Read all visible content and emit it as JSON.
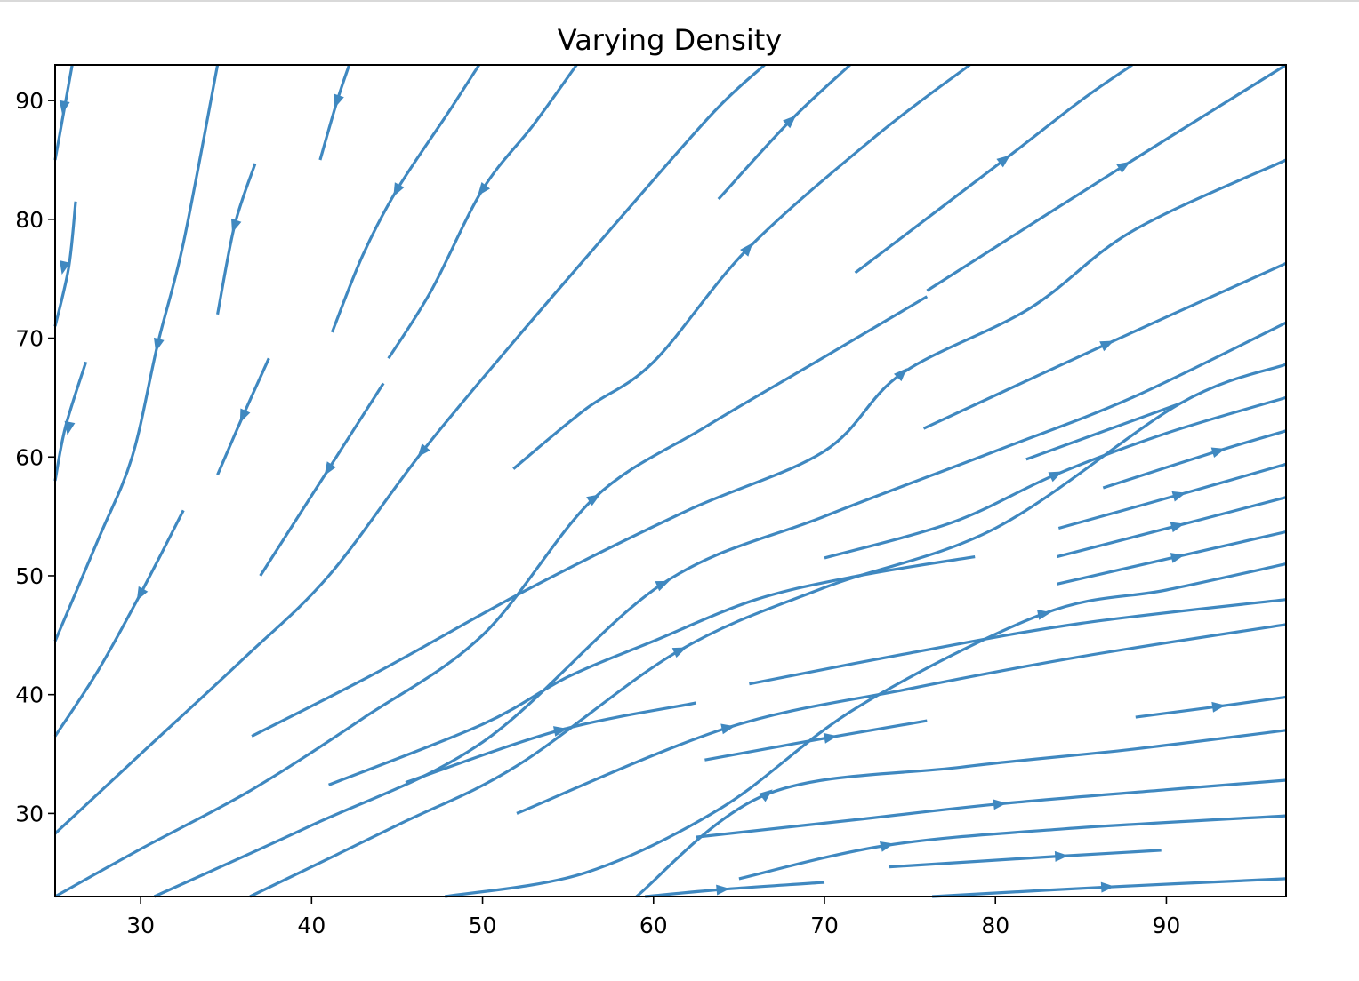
{
  "chart_data": {
    "type": "streamplot",
    "title": "Varying Density",
    "xlabel": "",
    "ylabel": "",
    "xlim": [
      25,
      97
    ],
    "ylim": [
      23,
      93
    ],
    "xticks": [
      30,
      40,
      50,
      60,
      70,
      80,
      90
    ],
    "yticks": [
      30,
      40,
      50,
      60,
      70,
      80,
      90
    ],
    "grid": false,
    "color": "#3f88c0",
    "streamlines": [
      {
        "points": [
          [
            25,
            85
          ],
          [
            26,
            93
          ]
        ],
        "arrows": [
          [
            25.5,
            89.5,
            "down"
          ]
        ]
      },
      {
        "points": [
          [
            25,
            71
          ],
          [
            25.8,
            76
          ],
          [
            26.2,
            81.5
          ]
        ],
        "arrows": [
          [
            25.5,
            76,
            "down"
          ]
        ]
      },
      {
        "points": [
          [
            25,
            58
          ],
          [
            25.6,
            62.5
          ],
          [
            26.8,
            68
          ]
        ],
        "arrows": [
          [
            25.8,
            62.5,
            "down"
          ]
        ]
      },
      {
        "points": [
          [
            25,
            44.5
          ],
          [
            27.5,
            53
          ],
          [
            29.5,
            60
          ],
          [
            31,
            69.5
          ],
          [
            32.5,
            78
          ],
          [
            34.5,
            93
          ]
        ],
        "arrows": [
          [
            31,
            69.5,
            "down"
          ]
        ]
      },
      {
        "points": [
          [
            25,
            36.5
          ],
          [
            27.5,
            42
          ],
          [
            30,
            48.5
          ],
          [
            32.5,
            55.5
          ]
        ],
        "arrows": [
          [
            30,
            48.5,
            "down"
          ]
        ]
      },
      {
        "points": [
          [
            34.5,
            72
          ],
          [
            35.5,
            79.5
          ],
          [
            36.7,
            84.7
          ]
        ],
        "arrows": [
          [
            35.5,
            79.5,
            "down"
          ]
        ]
      },
      {
        "points": [
          [
            34.5,
            58.5
          ],
          [
            36,
            63.5
          ],
          [
            37.5,
            68.3
          ]
        ],
        "arrows": [
          [
            36,
            63.5,
            "down"
          ]
        ]
      },
      {
        "points": [
          [
            40.5,
            85
          ],
          [
            41.5,
            90
          ],
          [
            42.2,
            93
          ]
        ],
        "arrows": [
          [
            41.5,
            90,
            "down"
          ]
        ]
      },
      {
        "points": [
          [
            41.2,
            70.5
          ],
          [
            43,
            77
          ],
          [
            45,
            82.5
          ],
          [
            48,
            89
          ],
          [
            49.8,
            93
          ]
        ],
        "arrows": [
          [
            45,
            82.5,
            "down"
          ]
        ]
      },
      {
        "points": [
          [
            37,
            50
          ],
          [
            41,
            59
          ],
          [
            44.2,
            66.2
          ]
        ],
        "arrows": [
          [
            41,
            59,
            "down"
          ]
        ]
      },
      {
        "points": [
          [
            44.5,
            68.3
          ],
          [
            47,
            74
          ],
          [
            50,
            82.5
          ],
          [
            53,
            88
          ],
          [
            55.5,
            93
          ]
        ],
        "arrows": [
          [
            50,
            82.5,
            "down"
          ]
        ]
      },
      {
        "points": [
          [
            25,
            28.3
          ],
          [
            30,
            35
          ],
          [
            36,
            43
          ],
          [
            41,
            50
          ],
          [
            46.5,
            60.5
          ],
          [
            52,
            70
          ],
          [
            58,
            80
          ],
          [
            63.5,
            89
          ],
          [
            66.5,
            93
          ]
        ],
        "arrows": [
          [
            46.5,
            60.5,
            "down"
          ]
        ]
      },
      {
        "points": [
          [
            63.8,
            81.7
          ],
          [
            68,
            88.3
          ],
          [
            71.5,
            93
          ]
        ],
        "arrows": [
          [
            68,
            88.3,
            "up"
          ]
        ]
      },
      {
        "points": [
          [
            51.8,
            59
          ],
          [
            56,
            64
          ],
          [
            60,
            68
          ],
          [
            65.5,
            77.5
          ],
          [
            73,
            87
          ],
          [
            78.5,
            93
          ]
        ],
        "arrows": [
          [
            65.5,
            77.5,
            "up"
          ]
        ]
      },
      {
        "points": [
          [
            25,
            23
          ],
          [
            30,
            27
          ],
          [
            36.5,
            32
          ],
          [
            43,
            38
          ],
          [
            50,
            45
          ],
          [
            56.5,
            56.5
          ],
          [
            63,
            62.5
          ],
          [
            69.5,
            68
          ],
          [
            76,
            73.5
          ]
        ],
        "arrows": [
          [
            56.5,
            56.5,
            "up"
          ]
        ]
      },
      {
        "points": [
          [
            71.8,
            75.5
          ],
          [
            80.5,
            85
          ],
          [
            85,
            90
          ],
          [
            88,
            93
          ]
        ],
        "arrows": [
          [
            80.5,
            85,
            "up"
          ]
        ]
      },
      {
        "points": [
          [
            36.5,
            36.5
          ],
          [
            44,
            42
          ],
          [
            52.7,
            48.9
          ],
          [
            62,
            55.5
          ],
          [
            70,
            60.5
          ],
          [
            74.5,
            67
          ],
          [
            82,
            72.5
          ],
          [
            88,
            79
          ],
          [
            97,
            85
          ]
        ],
        "arrows": [
          [
            74.5,
            67,
            "up"
          ]
        ]
      },
      {
        "points": [
          [
            76,
            74
          ],
          [
            87.5,
            84.5
          ],
          [
            97,
            93
          ]
        ],
        "arrows": [
          [
            87.5,
            84.5,
            "up"
          ]
        ]
      },
      {
        "points": [
          [
            30.8,
            23
          ],
          [
            40,
            29
          ],
          [
            50,
            36
          ],
          [
            60.5,
            49.3
          ],
          [
            70,
            55
          ],
          [
            80,
            60.5
          ],
          [
            88,
            65
          ],
          [
            97,
            71.3
          ]
        ],
        "arrows": [
          [
            60.5,
            49.3,
            "up"
          ]
        ]
      },
      {
        "points": [
          [
            75.8,
            62.4
          ],
          [
            86.5,
            69.5
          ],
          [
            97,
            76.3
          ]
        ],
        "arrows": [
          [
            86.5,
            69.5,
            "up"
          ]
        ]
      },
      {
        "points": [
          [
            36.4,
            23
          ],
          [
            45,
            29
          ],
          [
            52,
            34
          ],
          [
            61.5,
            43.7
          ],
          [
            70,
            49
          ],
          [
            80,
            54
          ],
          [
            90.8,
            64.5
          ],
          [
            97,
            67.8
          ]
        ],
        "arrows": [
          [
            61.5,
            43.7,
            "up"
          ]
        ]
      },
      {
        "points": [
          [
            81.8,
            59.8
          ],
          [
            90.8,
            64.5
          ]
        ],
        "arrows": []
      },
      {
        "points": [
          [
            70,
            51.5
          ],
          [
            77.5,
            54.5
          ],
          [
            83.5,
            58.5
          ],
          [
            90,
            62
          ],
          [
            97,
            65
          ]
        ],
        "arrows": [
          [
            83.5,
            58.5,
            "up"
          ]
        ]
      },
      {
        "points": [
          [
            86.3,
            57.4
          ],
          [
            93,
            60.5
          ],
          [
            97,
            62.2
          ]
        ],
        "arrows": [
          [
            93,
            60.5,
            "up"
          ]
        ]
      },
      {
        "points": [
          [
            41,
            32.4
          ],
          [
            50,
            37.5
          ],
          [
            55,
            41.5
          ],
          [
            60,
            44.5
          ],
          [
            66,
            48
          ],
          [
            72,
            50
          ],
          [
            78.8,
            51.6
          ]
        ],
        "arrows": []
      },
      {
        "points": [
          [
            83.7,
            54
          ],
          [
            90.7,
            56.8
          ],
          [
            97,
            59.4
          ]
        ],
        "arrows": [
          [
            90.7,
            56.8,
            "up"
          ]
        ]
      },
      {
        "points": [
          [
            83.6,
            51.6
          ],
          [
            90.6,
            54.2
          ],
          [
            97,
            56.6
          ]
        ],
        "arrows": [
          [
            90.6,
            54.2,
            "up"
          ]
        ]
      },
      {
        "points": [
          [
            83.6,
            49.3
          ],
          [
            90.6,
            51.6
          ],
          [
            97,
            53.7
          ]
        ],
        "arrows": [
          [
            90.6,
            51.6,
            "up"
          ]
        ]
      },
      {
        "points": [
          [
            45.5,
            32.6
          ],
          [
            54.5,
            37
          ],
          [
            62.5,
            39.3
          ]
        ],
        "arrows": [
          [
            54.5,
            37,
            "up"
          ]
        ]
      },
      {
        "points": [
          [
            47.8,
            23
          ],
          [
            56,
            25
          ],
          [
            64,
            30.5
          ],
          [
            72,
            39
          ],
          [
            82.8,
            46.8
          ],
          [
            90,
            48.8
          ],
          [
            97,
            51
          ]
        ],
        "arrows": [
          [
            82.8,
            46.8,
            "up"
          ]
        ]
      },
      {
        "points": [
          [
            65.6,
            40.9
          ],
          [
            75,
            43.5
          ],
          [
            85,
            46
          ],
          [
            97,
            48
          ]
        ],
        "arrows": []
      },
      {
        "points": [
          [
            52,
            30
          ],
          [
            64.3,
            37.2
          ],
          [
            75,
            40.5
          ],
          [
            85,
            43.2
          ],
          [
            97,
            45.9
          ]
        ],
        "arrows": [
          [
            64.3,
            37.2,
            "up"
          ]
        ]
      },
      {
        "points": [
          [
            63,
            34.5
          ],
          [
            70.3,
            36.4
          ],
          [
            76,
            37.8
          ]
        ],
        "arrows": [
          [
            70.3,
            36.4,
            "up"
          ]
        ]
      },
      {
        "points": [
          [
            88.2,
            38.1
          ],
          [
            93,
            39
          ],
          [
            97,
            39.8
          ]
        ],
        "arrows": [
          [
            93,
            39,
            "up"
          ]
        ]
      },
      {
        "points": [
          [
            59,
            23
          ],
          [
            66.6,
            31.6
          ],
          [
            78,
            33.9
          ],
          [
            88,
            35.4
          ],
          [
            97,
            37
          ]
        ],
        "arrows": [
          [
            66.6,
            31.6,
            "up"
          ]
        ]
      },
      {
        "points": [
          [
            62.5,
            28
          ],
          [
            72,
            29.5
          ],
          [
            80.2,
            30.8
          ],
          [
            90,
            32
          ],
          [
            97,
            32.8
          ]
        ],
        "arrows": [
          [
            80.2,
            30.8,
            "up"
          ]
        ]
      },
      {
        "points": [
          [
            65,
            24.5
          ],
          [
            73.6,
            27.3
          ],
          [
            84,
            28.7
          ],
          [
            97,
            29.8
          ]
        ],
        "arrows": [
          [
            73.6,
            27.3,
            "up"
          ]
        ]
      },
      {
        "points": [
          [
            73.8,
            25.5
          ],
          [
            83.8,
            26.4
          ],
          [
            89.7,
            26.9
          ]
        ],
        "arrows": [
          [
            83.8,
            26.4,
            "up"
          ]
        ]
      },
      {
        "points": [
          [
            59.5,
            23
          ],
          [
            64,
            23.6
          ],
          [
            70,
            24.2
          ]
        ],
        "arrows": [
          [
            64,
            23.6,
            "up"
          ]
        ]
      },
      {
        "points": [
          [
            76.3,
            23
          ],
          [
            86.5,
            23.8
          ],
          [
            97,
            24.5
          ]
        ],
        "arrows": [
          [
            86.5,
            23.8,
            "up"
          ]
        ]
      }
    ]
  }
}
